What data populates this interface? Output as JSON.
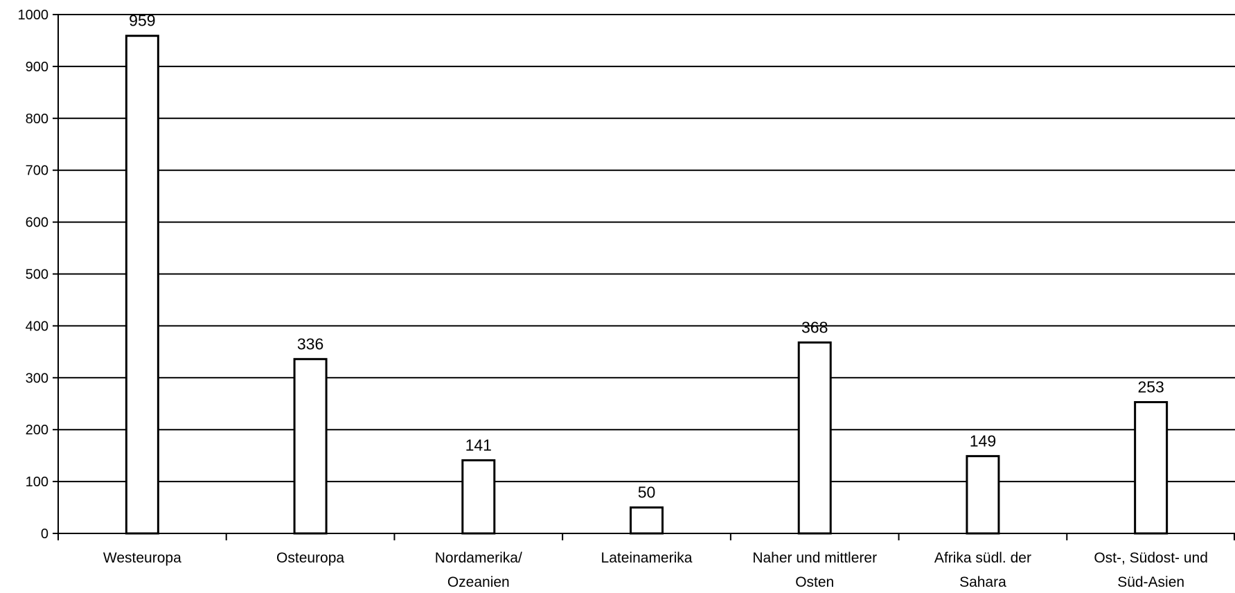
{
  "chart_data": {
    "type": "bar",
    "categories": [
      [
        "Westeuropa"
      ],
      [
        "Osteuropa"
      ],
      [
        "Nordamerika/",
        "Ozeanien"
      ],
      [
        "Lateinamerika"
      ],
      [
        "Naher und mittlerer",
        "Osten"
      ],
      [
        "Afrika südl. der",
        "Sahara"
      ],
      [
        "Ost-, Südost- und",
        "Süd-Asien"
      ]
    ],
    "values": [
      959,
      336,
      141,
      50,
      368,
      149,
      253
    ],
    "data_labels": [
      "959",
      "336",
      "141",
      "50",
      "368",
      "149",
      "253"
    ],
    "ylim": [
      0,
      1000
    ],
    "yticks": [
      0,
      100,
      200,
      300,
      400,
      500,
      600,
      700,
      800,
      900,
      1000
    ],
    "ytick_labels": [
      "0",
      "100",
      "200",
      "300",
      "400",
      "500",
      "600",
      "700",
      "800",
      "900",
      "1000"
    ],
    "grid": true,
    "title": "",
    "xlabel": "",
    "ylabel": "",
    "colors": {
      "bar_fill": "#ffffff",
      "bar_stroke": "#000000",
      "grid": "#000000"
    }
  }
}
